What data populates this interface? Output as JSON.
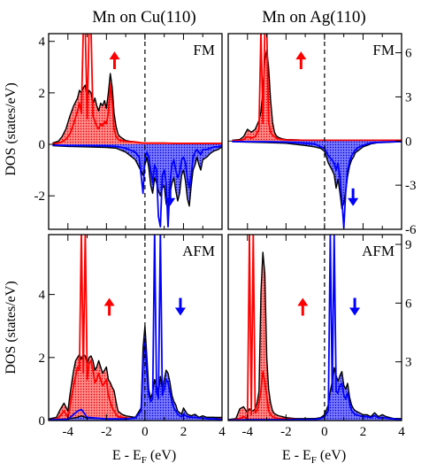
{
  "columns": [
    {
      "title": "Mn on Cu(110)"
    },
    {
      "title": "Mn on Ag(110)"
    }
  ],
  "ylabel": "DOS (states/eV)",
  "xlabel_parts": [
    "E - E",
    "F",
    " (eV)"
  ],
  "colors": {
    "spin_up": "#ff0000",
    "spin_down": "#0000ff",
    "total": "#000000"
  },
  "chart_data": [
    {
      "type": "area",
      "column": "Mn on Cu(110)",
      "state_label": "FM",
      "xlim": [
        -5,
        4
      ],
      "ylim": [
        -3.3,
        4.3
      ],
      "xticks": [
        -4,
        -2,
        0,
        2,
        4
      ],
      "yticks": [
        -2,
        0,
        2,
        4
      ],
      "y_axis_side": "left",
      "fermi_level": 0,
      "spin_up": {
        "x": [
          -4.8,
          -4.5,
          -4.3,
          -4.1,
          -3.9,
          -3.7,
          -3.5,
          -3.4,
          -3.3,
          -3.2,
          -3.1,
          -3.0,
          -2.9,
          -2.8,
          -2.7,
          -2.6,
          -2.5,
          -2.4,
          -2.3,
          -2.2,
          -2.1,
          -2.0,
          -1.9,
          -1.8,
          -1.7,
          -1.6,
          -1.5,
          -1.4,
          -1.3,
          -1.2,
          -1.0,
          -0.8,
          -0.6,
          -0.4,
          -0.2,
          0.0,
          0.5,
          1.0,
          1.5,
          2.0,
          2.5,
          3.0,
          3.5,
          4.0
        ],
        "total": [
          0.05,
          0.12,
          0.3,
          0.6,
          1.1,
          1.5,
          1.8,
          2.1,
          2.0,
          2.2,
          2.3,
          1.8,
          2.1,
          2.0,
          1.6,
          1.8,
          1.5,
          1.3,
          1.6,
          1.5,
          1.7,
          1.4,
          2.0,
          2.75,
          2.2,
          1.2,
          0.7,
          0.4,
          0.3,
          0.25,
          0.15,
          0.12,
          0.1,
          0.08,
          0.06,
          0.05,
          0.05,
          0.05,
          0.04,
          0.04,
          0.04,
          0.04,
          0.04,
          0.04
        ],
        "projected": [
          0.02,
          0.05,
          0.1,
          0.2,
          0.4,
          0.8,
          1.3,
          1.6,
          1.2,
          4.5,
          4.5,
          1.0,
          4.5,
          4.5,
          1.1,
          0.9,
          0.7,
          0.6,
          0.8,
          0.7,
          0.9,
          0.8,
          1.2,
          2.3,
          1.6,
          0.6,
          0.3,
          0.2,
          0.15,
          0.15,
          0.12,
          0.1,
          0.1,
          0.08,
          0.06,
          0.05,
          0.05,
          0.05,
          0.04,
          0.04,
          0.04,
          0.04,
          0.04,
          0.04
        ]
      },
      "spin_down": {
        "x": [
          -4.8,
          -4.0,
          -3.0,
          -2.0,
          -1.5,
          -1.0,
          -0.5,
          -0.3,
          -0.1,
          0.0,
          0.1,
          0.2,
          0.3,
          0.4,
          0.5,
          0.6,
          0.7,
          0.8,
          0.9,
          1.0,
          1.1,
          1.2,
          1.3,
          1.4,
          1.5,
          1.6,
          1.7,
          1.8,
          1.9,
          2.0,
          2.1,
          2.2,
          2.3,
          2.4,
          2.5,
          2.6,
          2.7,
          2.8,
          2.9,
          3.0,
          3.2,
          3.4,
          3.6,
          3.8,
          4.0
        ],
        "total": [
          -0.05,
          -0.08,
          -0.1,
          -0.12,
          -0.15,
          -0.3,
          -0.6,
          -0.9,
          -1.2,
          -0.8,
          -0.5,
          -0.9,
          -1.6,
          -1.9,
          -1.3,
          -1.5,
          -1.8,
          -2.0,
          -1.7,
          -1.6,
          -2.3,
          -2.5,
          -1.9,
          -1.5,
          -1.3,
          -1.8,
          -2.2,
          -1.9,
          -1.2,
          -1.0,
          -1.4,
          -2.1,
          -2.4,
          -1.6,
          -1.0,
          -0.8,
          -0.5,
          -0.8,
          -1.0,
          -0.6,
          -0.5,
          -0.35,
          -0.25,
          -0.2,
          -0.1
        ],
        "projected": [
          -0.03,
          -0.05,
          -0.05,
          -0.06,
          -0.08,
          -0.15,
          -0.3,
          -0.5,
          -1.9,
          -0.5,
          -0.3,
          -0.5,
          -1.0,
          -1.5,
          -0.8,
          -1.0,
          -2.8,
          -3.2,
          -1.2,
          -1.0,
          -1.5,
          -3.2,
          -1.5,
          -0.8,
          -0.6,
          -1.0,
          -1.3,
          -1.1,
          -0.6,
          -0.5,
          -0.7,
          -1.3,
          -1.7,
          -1.2,
          -0.5,
          -0.3,
          -0.2,
          -0.3,
          -0.4,
          -0.2,
          -0.2,
          -0.15,
          -0.1,
          -0.1,
          -0.05
        ]
      }
    },
    {
      "type": "area",
      "column": "Mn on Ag(110)",
      "state_label": "FM",
      "xlim": [
        -5,
        4
      ],
      "ylim": [
        -6,
        7.3
      ],
      "xticks": [
        -4,
        -2,
        0,
        2,
        4
      ],
      "yticks": [
        -6,
        -3,
        0,
        3,
        6
      ],
      "y_axis_side": "right",
      "fermi_level": 0,
      "spin_up": {
        "x": [
          -4.8,
          -4.4,
          -4.2,
          -4.0,
          -3.8,
          -3.6,
          -3.4,
          -3.3,
          -3.2,
          -3.1,
          -3.0,
          -2.9,
          -2.8,
          -2.7,
          -2.6,
          -2.5,
          -2.4,
          -2.2,
          -2.0,
          -1.5,
          -1.0,
          0.0,
          1.0,
          2.0,
          3.0,
          4.0
        ],
        "total": [
          0.05,
          0.1,
          0.3,
          0.8,
          0.6,
          0.8,
          1.4,
          2.0,
          3.5,
          5.5,
          6.2,
          5.0,
          2.8,
          1.3,
          0.6,
          0.35,
          0.25,
          0.15,
          0.1,
          0.08,
          0.06,
          0.05,
          0.05,
          0.05,
          0.05,
          0.05
        ],
        "projected": [
          0.02,
          0.05,
          0.1,
          0.3,
          0.2,
          0.3,
          0.8,
          7.5,
          1.2,
          7.5,
          7.5,
          1.3,
          0.6,
          0.4,
          0.3,
          0.2,
          0.15,
          0.1,
          0.08,
          0.06,
          0.05,
          0.05,
          0.05,
          0.05,
          0.05,
          0.05
        ]
      },
      "spin_down": {
        "x": [
          -4.8,
          -4.0,
          -3.0,
          -2.0,
          -1.0,
          -0.5,
          -0.2,
          0.0,
          0.2,
          0.4,
          0.5,
          0.6,
          0.7,
          0.8,
          0.9,
          1.0,
          1.1,
          1.2,
          1.3,
          1.4,
          1.5,
          1.6,
          1.7,
          1.8,
          1.9,
          2.0,
          2.2,
          2.4,
          2.6,
          2.8,
          3.0,
          3.5,
          4.0
        ],
        "total": [
          -0.05,
          -0.08,
          -0.1,
          -0.15,
          -0.3,
          -0.4,
          -0.5,
          -0.7,
          -1.5,
          -2.0,
          -2.3,
          -3.2,
          -2.6,
          -3.5,
          -4.6,
          -4.2,
          -3.4,
          -2.4,
          -1.7,
          -1.3,
          -1.1,
          -0.8,
          -0.7,
          -0.6,
          -0.5,
          -0.4,
          -0.3,
          -0.2,
          -0.15,
          -0.1,
          -0.1,
          -0.08,
          -0.05
        ],
        "projected": [
          -0.03,
          -0.05,
          -0.05,
          -0.08,
          -0.15,
          -0.2,
          -0.4,
          -0.5,
          -1.0,
          -1.3,
          -1.5,
          -2.0,
          -1.5,
          -2.5,
          -4.0,
          -5.9,
          -3.5,
          -2.0,
          -1.4,
          -1.0,
          -0.8,
          -0.6,
          -0.5,
          -0.4,
          -0.35,
          -0.3,
          -0.2,
          -0.15,
          -0.1,
          -0.1,
          -0.08,
          -0.05,
          -0.05
        ]
      }
    },
    {
      "type": "area",
      "column": "Mn on Cu(110)",
      "state_label": "AFM",
      "xlim": [
        -5,
        4
      ],
      "ylim": [
        0,
        5.9
      ],
      "xticks": [
        -4,
        -2,
        0,
        2,
        4
      ],
      "yticks": [
        0,
        2,
        4
      ],
      "y_axis_side": "left",
      "fermi_level": 0,
      "spin_up": {
        "x": [
          -5.0,
          -4.6,
          -4.4,
          -4.2,
          -4.0,
          -3.9,
          -3.8,
          -3.7,
          -3.6,
          -3.5,
          -3.4,
          -3.3,
          -3.2,
          -3.1,
          -3.0,
          -2.9,
          -2.8,
          -2.7,
          -2.6,
          -2.5,
          -2.4,
          -2.3,
          -2.2,
          -2.1,
          -2.0,
          -1.9,
          -1.8,
          -1.7,
          -1.6,
          -1.5,
          -1.4,
          -1.2,
          -1.0,
          -0.5,
          0.0,
          0.5,
          1.0,
          2.0,
          3.0,
          4.0
        ],
        "total": [
          0.05,
          0.1,
          0.35,
          0.55,
          0.3,
          0.8,
          1.2,
          1.6,
          1.9,
          2.0,
          2.1,
          1.95,
          2.1,
          2.05,
          1.8,
          2.0,
          2.05,
          1.9,
          1.6,
          1.7,
          1.9,
          1.7,
          1.5,
          1.6,
          1.7,
          1.3,
          1.2,
          1.05,
          0.95,
          0.6,
          0.3,
          0.2,
          0.15,
          0.1,
          0.1,
          0.1,
          0.1,
          0.1,
          0.1,
          0.1
        ],
        "projected": [
          0.02,
          0.04,
          0.15,
          0.3,
          0.1,
          0.4,
          0.8,
          1.1,
          1.4,
          1.7,
          1.6,
          6.0,
          1.5,
          6.0,
          1.3,
          1.8,
          1.9,
          1.6,
          1.2,
          1.3,
          1.5,
          1.3,
          1.1,
          1.2,
          1.3,
          0.8,
          0.6,
          0.4,
          0.3,
          0.2,
          0.12,
          0.1,
          0.08,
          0.06,
          0.05,
          0.05,
          0.05,
          0.05,
          0.05,
          0.05
        ]
      },
      "spin_down": {
        "x": [
          -5.0,
          -4.0,
          -3.5,
          -3.3,
          -3.0,
          -2.0,
          -1.0,
          -0.5,
          -0.2,
          -0.1,
          0.0,
          0.1,
          0.2,
          0.3,
          0.4,
          0.5,
          0.6,
          0.7,
          0.8,
          0.9,
          1.0,
          1.1,
          1.2,
          1.3,
          1.4,
          1.5,
          1.6,
          1.7,
          1.8,
          1.9,
          2.0,
          2.2,
          2.4,
          2.6,
          2.8,
          3.0,
          3.2,
          3.4,
          3.6,
          3.8,
          4.0
        ],
        "total": [
          0.02,
          0.05,
          0.1,
          0.15,
          0.08,
          0.05,
          0.05,
          0.1,
          0.4,
          2.3,
          3.0,
          2.0,
          1.0,
          0.7,
          0.9,
          1.3,
          1.1,
          0.9,
          1.4,
          1.0,
          1.3,
          1.6,
          1.5,
          1.2,
          0.8,
          0.6,
          0.5,
          0.3,
          0.25,
          0.2,
          0.4,
          0.2,
          0.15,
          0.2,
          0.1,
          0.15,
          0.1,
          0.1,
          0.1,
          0.05,
          0.05
        ],
        "projected": [
          0.02,
          0.04,
          0.3,
          0.35,
          0.1,
          0.05,
          0.05,
          0.08,
          0.3,
          1.8,
          2.6,
          1.5,
          0.8,
          0.6,
          0.7,
          6.0,
          0.9,
          0.7,
          6.0,
          0.8,
          1.0,
          1.3,
          1.2,
          0.9,
          0.6,
          0.4,
          0.3,
          0.2,
          0.15,
          0.12,
          0.2,
          0.12,
          0.1,
          0.1,
          0.08,
          0.08,
          0.06,
          0.05,
          0.05,
          0.04,
          0.04
        ]
      }
    },
    {
      "type": "area",
      "column": "Mn on Ag(110)",
      "state_label": "AFM",
      "xlim": [
        -5,
        4
      ],
      "ylim": [
        0,
        9.5
      ],
      "xticks": [
        -4,
        -2,
        0,
        2,
        4
      ],
      "yticks": [
        3,
        6,
        9
      ],
      "y_axis_side": "right",
      "fermi_level": 0,
      "spin_up": {
        "x": [
          -5.0,
          -4.6,
          -4.4,
          -4.2,
          -4.0,
          -3.9,
          -3.8,
          -3.7,
          -3.6,
          -3.5,
          -3.4,
          -3.3,
          -3.2,
          -3.1,
          -3.0,
          -2.9,
          -2.8,
          -2.7,
          -2.6,
          -2.5,
          -2.4,
          -2.2,
          -2.0,
          -1.5,
          -1.0,
          0.0,
          1.0,
          2.0,
          3.0,
          4.0
        ],
        "total": [
          0.05,
          0.1,
          0.6,
          0.7,
          0.4,
          0.6,
          0.5,
          0.5,
          0.6,
          0.9,
          1.5,
          6.5,
          8.6,
          7.5,
          3.2,
          1.6,
          0.9,
          0.5,
          0.35,
          0.3,
          0.25,
          0.2,
          0.15,
          0.1,
          0.1,
          0.1,
          0.1,
          0.1,
          0.1,
          0.1
        ],
        "projected": [
          0.02,
          0.05,
          0.1,
          0.2,
          0.1,
          9.5,
          0.3,
          9.5,
          0.4,
          0.5,
          0.9,
          1.5,
          2.5,
          2.0,
          1.2,
          0.5,
          0.3,
          0.2,
          0.15,
          0.12,
          0.1,
          0.1,
          0.08,
          0.06,
          0.05,
          0.05,
          0.05,
          0.05,
          0.05,
          0.05
        ]
      },
      "spin_down": {
        "x": [
          -5.0,
          -4.0,
          -3.0,
          -2.0,
          -1.0,
          -0.5,
          -0.2,
          0.0,
          0.2,
          0.3,
          0.4,
          0.5,
          0.6,
          0.7,
          0.8,
          0.9,
          1.0,
          1.1,
          1.2,
          1.3,
          1.4,
          1.5,
          1.6,
          1.8,
          2.0,
          2.2,
          2.4,
          2.6,
          2.8,
          3.0,
          3.2,
          3.4,
          3.6,
          3.8,
          4.0
        ],
        "total": [
          0.02,
          0.05,
          0.05,
          0.05,
          0.08,
          0.1,
          0.15,
          0.3,
          0.8,
          1.5,
          2.0,
          2.7,
          2.3,
          2.0,
          2.3,
          2.5,
          1.8,
          1.6,
          1.9,
          1.2,
          0.8,
          0.6,
          0.5,
          0.4,
          0.3,
          0.3,
          0.2,
          0.4,
          0.2,
          0.3,
          0.2,
          0.15,
          0.1,
          0.1,
          0.05
        ],
        "projected": [
          0.02,
          0.04,
          0.04,
          0.04,
          0.05,
          0.06,
          0.1,
          0.2,
          0.5,
          9.5,
          1.5,
          9.5,
          1.5,
          1.4,
          1.8,
          1.9,
          1.3,
          1.1,
          1.4,
          0.9,
          0.5,
          0.4,
          0.3,
          0.25,
          0.2,
          0.2,
          0.15,
          0.25,
          0.12,
          0.15,
          0.12,
          0.1,
          0.08,
          0.06,
          0.04
        ]
      }
    }
  ]
}
